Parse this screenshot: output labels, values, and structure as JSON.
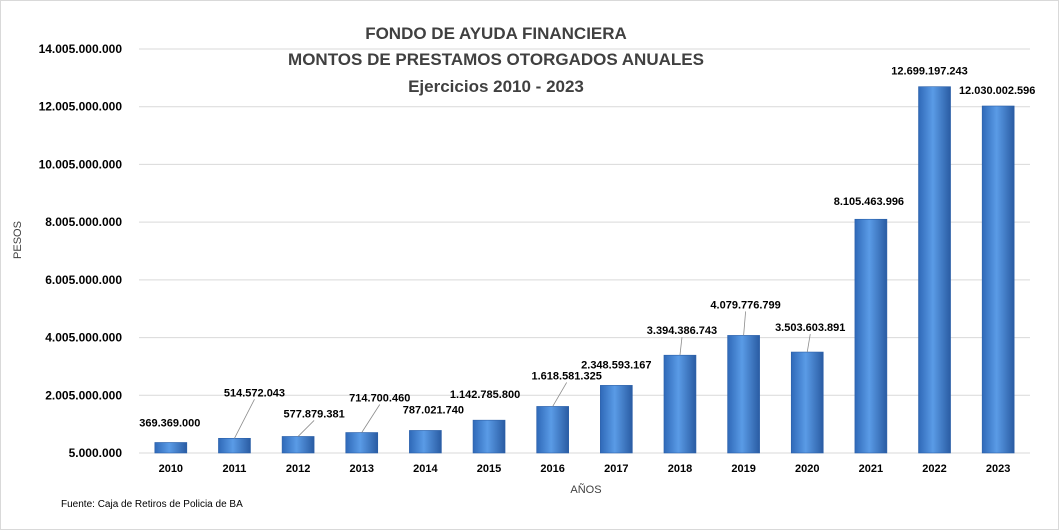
{
  "chart_data": {
    "type": "bar",
    "title_lines": [
      "FONDO DE AYUDA FINANCIERA",
      "MONTOS  DE  PRESTAMOS  OTORGADOS  ANUALES",
      "Ejercicios  2010 - 2023"
    ],
    "xlabel": "AÑOS",
    "ylabel": "PESOS",
    "source": "Fuente: Caja de Retiros de Policia de BA",
    "categories": [
      "2010",
      "2011",
      "2012",
      "2013",
      "2014",
      "2015",
      "2016",
      "2017",
      "2018",
      "2019",
      "2020",
      "2021",
      "2022",
      "2023"
    ],
    "values": [
      369369000,
      514572043,
      577879381,
      714700460,
      787021740,
      1142785800,
      1618581325,
      2348593167,
      3394386743,
      4079776799,
      3503603891,
      8105463996,
      12699197243,
      12030002596
    ],
    "value_labels": [
      "369.369.000",
      "514.572.043",
      "577.879.381",
      "714.700.460",
      "787.021.740",
      "1.142.785.800",
      "1.618.581.325",
      "2.348.593.167",
      "3.394.386.743",
      "4.079.776.799",
      "3.503.603.891",
      "8.105.463.996",
      "12.699.197.243",
      "12.030.002.596"
    ],
    "ylim": [
      5000000,
      14005000000
    ],
    "y_ticks": [
      5000000,
      2005000000,
      4005000000,
      6005000000,
      8005000000,
      10005000000,
      12005000000,
      14005000000
    ],
    "y_tick_labels": [
      "5.000.000",
      "2.005.000.000",
      "4.005.000.000",
      "6.005.000.000",
      "8.005.000.000",
      "10.005.000.000",
      "12.005.000.000",
      "14.005.000.000"
    ],
    "grid": true,
    "bar_color": "#3f7fd0",
    "bar_color_dark": "#2a5fa8",
    "gridline_color": "#d9d9d9"
  }
}
